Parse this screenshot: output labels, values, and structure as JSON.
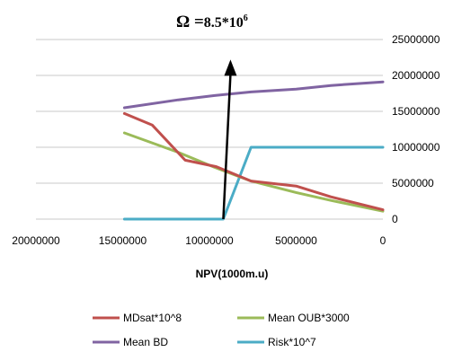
{
  "chart_data": {
    "type": "line",
    "title_prefix": "Ω =",
    "title_value": "8.5*10",
    "title_exponent": "6",
    "xlabel": "NPV(1000m.u)",
    "ylabel": "",
    "x_reversed": true,
    "xlim": [
      0,
      20000000
    ],
    "ylim": [
      0,
      25000000
    ],
    "x_ticks": [
      20000000,
      15000000,
      10000000,
      5000000,
      0
    ],
    "x_tick_labels": [
      "20000000",
      "15000000",
      "10000000",
      "5000000",
      "0"
    ],
    "y_ticks": [
      0,
      5000000,
      10000000,
      15000000,
      20000000,
      25000000
    ],
    "y_tick_labels": [
      "0",
      "5000000",
      "10000000",
      "15000000",
      "20000000",
      "25000000"
    ],
    "y_axis_side": "right",
    "grid": "horizontal",
    "legend_position": "bottom",
    "series": [
      {
        "name": "MDsat*10^8",
        "color": "#c0504d",
        "points": [
          [
            14900000,
            14700000
          ],
          [
            13300000,
            13100000
          ],
          [
            11400000,
            8200000
          ],
          [
            9600000,
            7300000
          ],
          [
            7600000,
            5300000
          ],
          [
            5000000,
            4600000
          ],
          [
            3000000,
            3100000
          ],
          [
            0,
            1300000
          ]
        ]
      },
      {
        "name": "Mean OUB*3000",
        "color": "#9bbb59",
        "points": [
          [
            14900000,
            12000000
          ],
          [
            11800000,
            9300000
          ],
          [
            9700000,
            7200000
          ],
          [
            7600000,
            5300000
          ],
          [
            5000000,
            3700000
          ],
          [
            3000000,
            2600000
          ],
          [
            0,
            1100000
          ]
        ]
      },
      {
        "name": "Mean BD",
        "color": "#8064a2",
        "points": [
          [
            14900000,
            15500000
          ],
          [
            11800000,
            16600000
          ],
          [
            9700000,
            17200000
          ],
          [
            7600000,
            17700000
          ],
          [
            5000000,
            18100000
          ],
          [
            3000000,
            18600000
          ],
          [
            0,
            19100000
          ]
        ]
      },
      {
        "name": "Risk*10^7",
        "color": "#4bacc6",
        "points": [
          [
            14900000,
            0
          ],
          [
            12000000,
            0
          ],
          [
            9200000,
            0
          ],
          [
            7600000,
            10000000
          ],
          [
            5000000,
            10000000
          ],
          [
            3000000,
            10000000
          ],
          [
            0,
            10000000
          ]
        ]
      }
    ],
    "annotation_arrow": {
      "x": 9200000,
      "y_from": 0,
      "y_to": 20700000,
      "color": "#000000"
    }
  }
}
